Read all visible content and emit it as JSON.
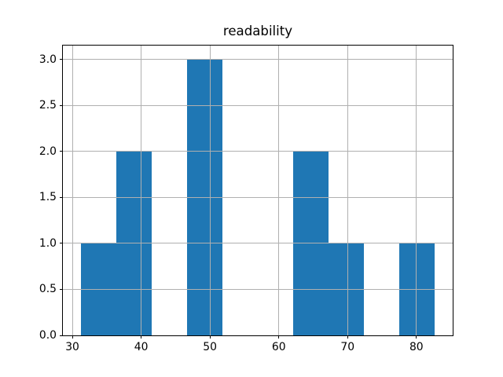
{
  "figure": {
    "background_color": "#ffffff"
  },
  "chart_data": {
    "type": "bar",
    "subtype": "histogram",
    "title": "readability",
    "xlabel": "",
    "ylabel": "",
    "bin_edges": [
      31.2,
      36.35,
      41.5,
      46.65,
      51.8,
      56.95,
      62.1,
      67.25,
      72.4,
      77.55,
      82.7
    ],
    "counts": [
      1,
      2,
      0,
      3,
      0,
      0,
      2,
      1,
      0,
      1
    ],
    "xlim": [
      28.625,
      85.275
    ],
    "ylim": [
      0,
      3.15
    ],
    "xticks": [
      30,
      40,
      50,
      60,
      70,
      80
    ],
    "xtick_labels": [
      "30",
      "40",
      "50",
      "60",
      "70",
      "80"
    ],
    "yticks": [
      0.0,
      0.5,
      1.0,
      1.5,
      2.0,
      2.5,
      3.0
    ],
    "ytick_labels": [
      "0.0",
      "0.5",
      "1.0",
      "1.5",
      "2.0",
      "2.5",
      "3.0"
    ],
    "grid": true,
    "grid_over_bars": true,
    "legend_position": "none",
    "bar_color": "#1f77b4",
    "grid_color": "#b0b0b0",
    "axis_color": "#000000",
    "text_color": "#000000"
  }
}
